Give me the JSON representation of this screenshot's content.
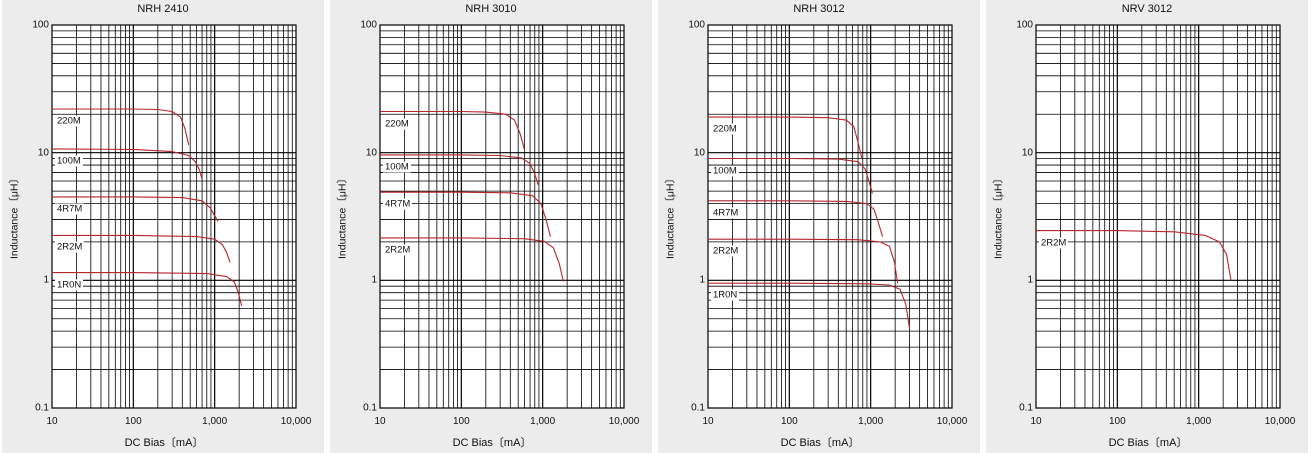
{
  "chart_data": [
    {
      "type": "line",
      "title": "NRH 2410",
      "xlabel": "DC Bias〔mA〕",
      "ylabel": "Inductance〔μH〕",
      "xscale": "log",
      "yscale": "log",
      "xlim": [
        10,
        10000
      ],
      "ylim": [
        0.1,
        100
      ],
      "xticks": [
        "10",
        "100",
        "1,000",
        "10,000"
      ],
      "yticks": [
        "0.1",
        "1",
        "10",
        "100"
      ],
      "grid": true,
      "series": [
        {
          "name": "220M",
          "color": "#b3262b",
          "x": [
            10,
            100,
            200,
            300,
            380,
            430,
            480
          ],
          "y": [
            22,
            22,
            21.8,
            21,
            19,
            15.5,
            11.5
          ]
        },
        {
          "name": "100M",
          "color": "#b3262b",
          "x": [
            10,
            100,
            300,
            480,
            580,
            650,
            700
          ],
          "y": [
            10.7,
            10.6,
            10.2,
            9.5,
            8.5,
            7.3,
            6.2
          ]
        },
        {
          "name": "4R7M",
          "color": "#b3262b",
          "x": [
            10,
            100,
            400,
            700,
            880,
            1000,
            1100
          ],
          "y": [
            4.5,
            4.5,
            4.45,
            4.2,
            3.7,
            3.2,
            2.9
          ]
        },
        {
          "name": "2R2M",
          "color": "#b3262b",
          "x": [
            10,
            100,
            600,
            1000,
            1250,
            1400,
            1550
          ],
          "y": [
            2.25,
            2.25,
            2.2,
            2.1,
            1.9,
            1.65,
            1.38
          ]
        },
        {
          "name": "1R0N",
          "color": "#b3262b",
          "x": [
            10,
            100,
            800,
            1400,
            1750,
            1950,
            2150
          ],
          "y": [
            1.15,
            1.15,
            1.13,
            1.07,
            0.97,
            0.8,
            0.63
          ]
        }
      ]
    },
    {
      "type": "line",
      "title": "NRH 3010",
      "xlabel": "DC Bias〔mA〕",
      "ylabel": "Inductance〔μH〕",
      "xscale": "log",
      "yscale": "log",
      "xlim": [
        10,
        10000
      ],
      "ylim": [
        0.1,
        100
      ],
      "xticks": [
        "10",
        "100",
        "1,000",
        "10,000"
      ],
      "yticks": [
        "0.1",
        "1",
        "10",
        "100"
      ],
      "grid": true,
      "series": [
        {
          "name": "220M",
          "color": "#b3262b",
          "x": [
            10,
            100,
            200,
            350,
            450,
            530,
            600
          ],
          "y": [
            21,
            21,
            20.8,
            20,
            18,
            14,
            10.5
          ]
        },
        {
          "name": "100M",
          "color": "#b3262b",
          "x": [
            10,
            100,
            300,
            550,
            700,
            800,
            880
          ],
          "y": [
            9.6,
            9.6,
            9.5,
            9.1,
            8.2,
            6.8,
            5.6
          ]
        },
        {
          "name": "4R7M",
          "color": "#b3262b",
          "x": [
            10,
            100,
            400,
            750,
            950,
            1100,
            1250
          ],
          "y": [
            4.9,
            4.9,
            4.85,
            4.6,
            4.0,
            3.0,
            2.2
          ]
        },
        {
          "name": "2R2M",
          "color": "#b3262b",
          "x": [
            10,
            100,
            600,
            1050,
            1350,
            1600,
            1800
          ],
          "y": [
            2.15,
            2.15,
            2.12,
            2.02,
            1.8,
            1.35,
            0.98
          ]
        }
      ]
    },
    {
      "type": "line",
      "title": "NRH 3012",
      "xlabel": "DC Bias〔mA〕",
      "ylabel": "Inductance〔μH〕",
      "xscale": "log",
      "yscale": "log",
      "xlim": [
        10,
        10000
      ],
      "ylim": [
        0.1,
        100
      ],
      "xticks": [
        "10",
        "100",
        "1,000",
        "10,000"
      ],
      "yticks": [
        "0.1",
        "1",
        "10",
        "100"
      ],
      "grid": true,
      "series": [
        {
          "name": "220M",
          "color": "#b3262b",
          "x": [
            10,
            100,
            300,
            500,
            620,
            700,
            780
          ],
          "y": [
            19,
            19,
            18.8,
            18,
            16,
            12,
            9
          ]
        },
        {
          "name": "100M",
          "color": "#b3262b",
          "x": [
            10,
            100,
            400,
            700,
            850,
            950,
            1050
          ],
          "y": [
            9,
            9,
            8.9,
            8.5,
            7.5,
            6,
            4.8
          ]
        },
        {
          "name": "4R7M",
          "color": "#b3262b",
          "x": [
            10,
            100,
            500,
            900,
            1100,
            1250,
            1400
          ],
          "y": [
            4.2,
            4.2,
            4.15,
            4,
            3.6,
            2.8,
            2.2
          ]
        },
        {
          "name": "2R2M",
          "color": "#b3262b",
          "x": [
            10,
            100,
            700,
            1300,
            1700,
            1950,
            2150
          ],
          "y": [
            2.1,
            2.1,
            2.08,
            2,
            1.85,
            1.4,
            0.95
          ]
        },
        {
          "name": "1R0N",
          "color": "#b3262b",
          "x": [
            10,
            100,
            900,
            1700,
            2300,
            2700,
            3000
          ],
          "y": [
            0.95,
            0.95,
            0.94,
            0.92,
            0.85,
            0.65,
            0.42
          ]
        }
      ]
    },
    {
      "type": "line",
      "title": "NRV 3012",
      "xlabel": "DC Bias〔mA〕",
      "ylabel": "Inductance〔μH〕",
      "xscale": "log",
      "yscale": "log",
      "xlim": [
        10,
        10000
      ],
      "ylim": [
        0.1,
        100
      ],
      "xticks": [
        "10",
        "100",
        "1,000",
        "10,000"
      ],
      "yticks": [
        "0.1",
        "1",
        "10",
        "100"
      ],
      "grid": true,
      "series": [
        {
          "name": "2R2M",
          "color": "#b3262b",
          "x": [
            10,
            100,
            500,
            1200,
            1800,
            2200,
            2500
          ],
          "y": [
            2.45,
            2.45,
            2.4,
            2.25,
            2,
            1.6,
            1
          ]
        }
      ]
    }
  ]
}
